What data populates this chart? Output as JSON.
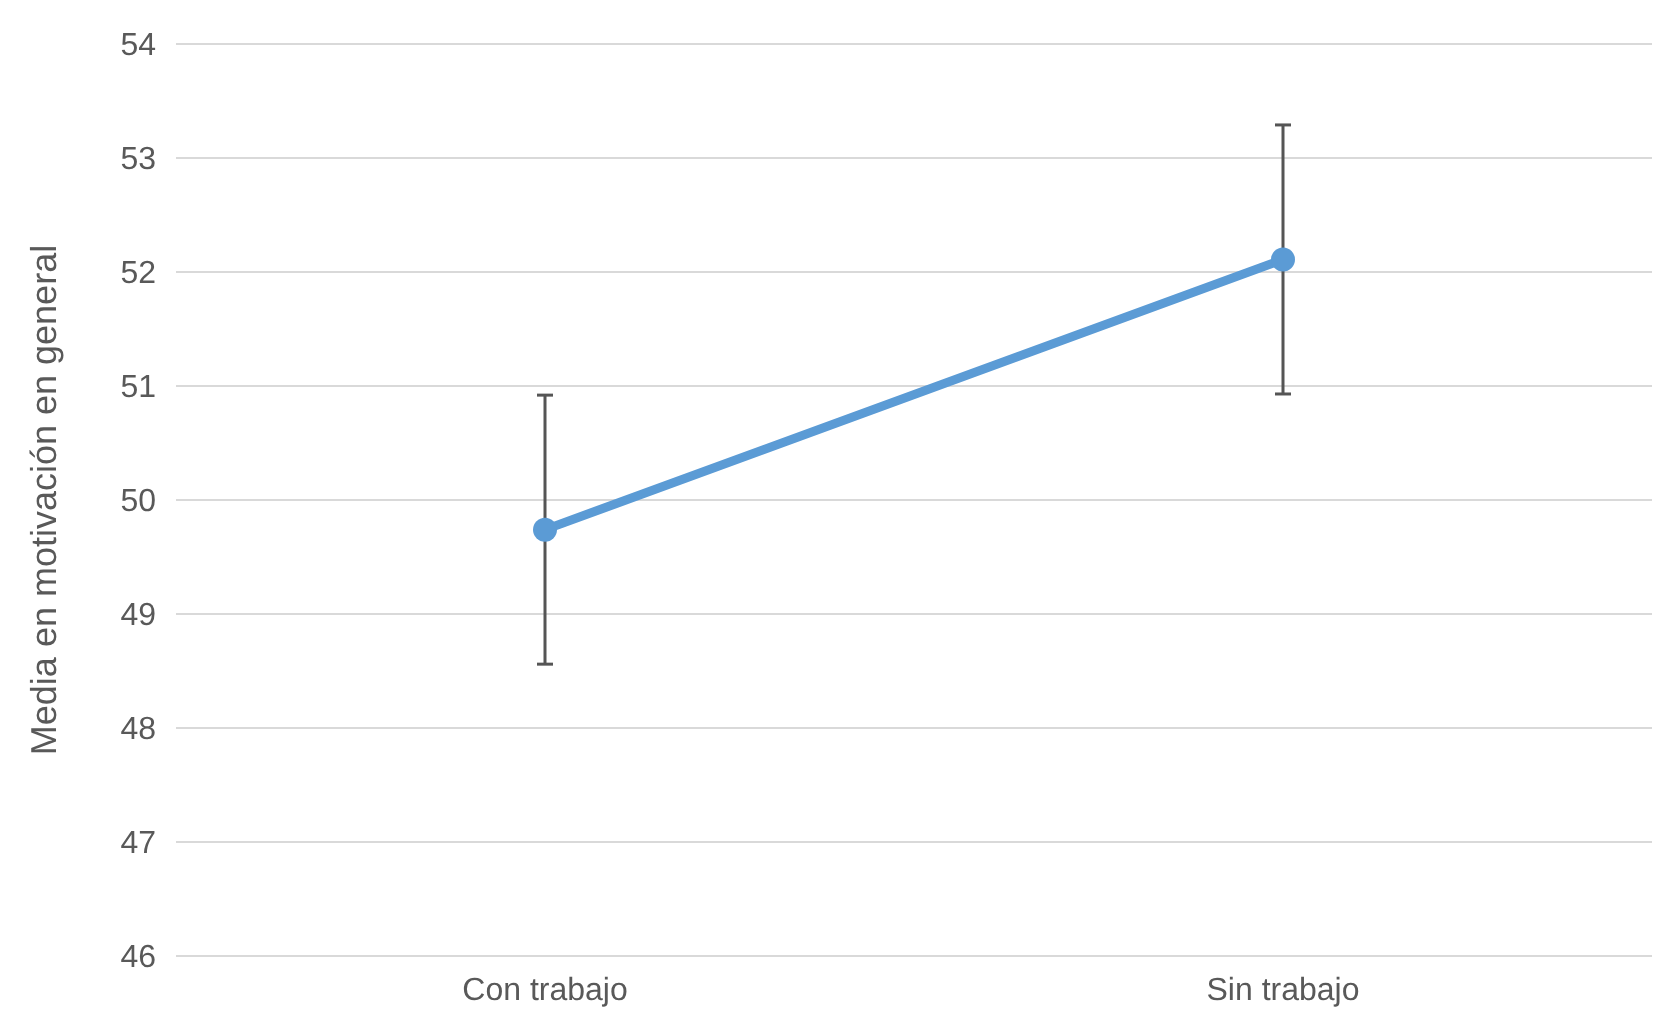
{
  "chart_data": {
    "type": "line",
    "ylabel": "Media en motivación en general",
    "categories": [
      "Con trabajo",
      "Sin trabajo"
    ],
    "series": [
      {
        "color": "#5b9bd5",
        "values": [
          49.74,
          52.11
        ],
        "errors": [
          1.18,
          1.18
        ]
      }
    ],
    "ylim": [
      46,
      54
    ],
    "yticks": [
      46,
      47,
      48,
      49,
      50,
      51,
      52,
      53,
      54
    ],
    "grid": "y",
    "marker": "circle",
    "line_style": "solid"
  }
}
